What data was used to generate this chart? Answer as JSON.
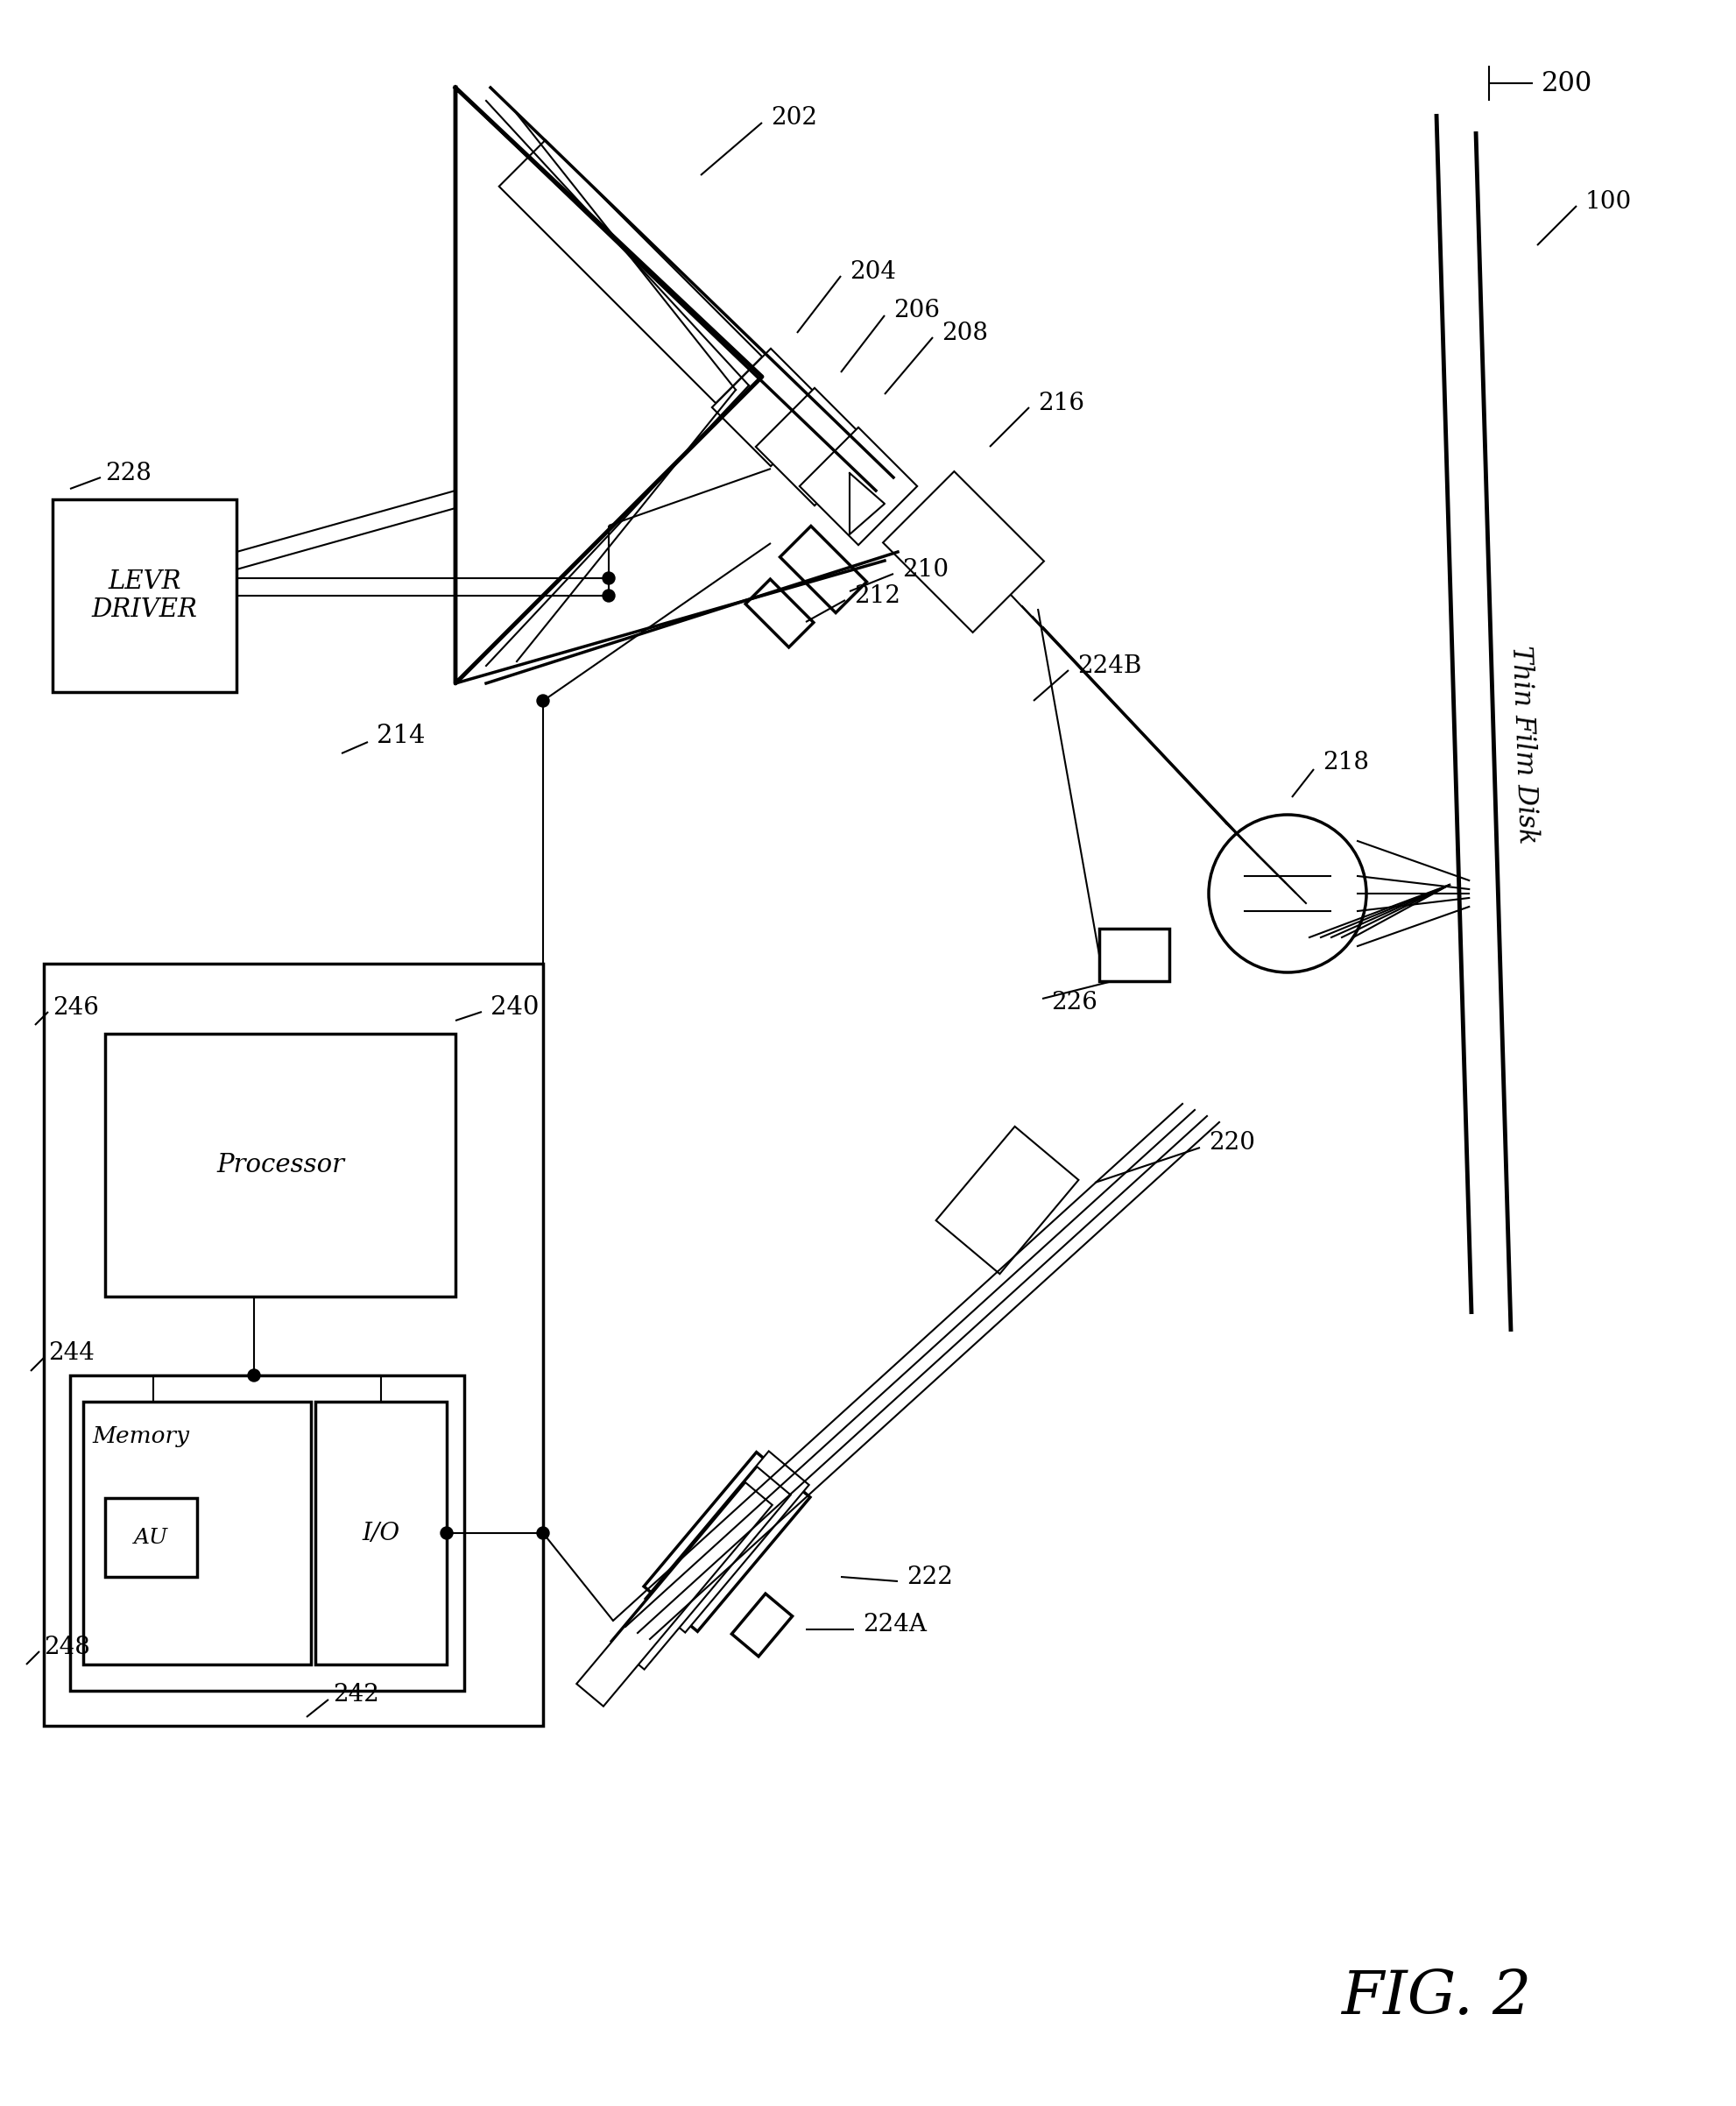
{
  "background_color": "#ffffff",
  "fig2_label": "FIG. 2",
  "label_200": "200",
  "label_100": "100",
  "thin_film_disk_text": "Thin Film Disk"
}
